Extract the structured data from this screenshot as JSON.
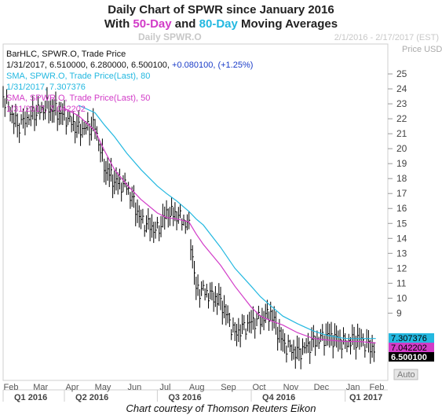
{
  "header": {
    "title_prefix": "Daily Chart of SPWR since January 2016",
    "subtitle_prefix": "With ",
    "ma50_label": "50-Day",
    "subtitle_mid": " and ",
    "ma80_label": "80-Day",
    "subtitle_suffix": " Moving Averages"
  },
  "caption": "Chart courtesy of Thomson Reuters Eikon",
  "colors": {
    "price": "#000000",
    "sma80": "#23b8e0",
    "sma50": "#d23cc8",
    "ma50_text": "#d23cc8",
    "ma80_text": "#23b8e0"
  },
  "chart_data": {
    "type": "line",
    "title": "Daily Chart of SPWR since January 2016",
    "instrument": "Daily SPWR.O",
    "date_range": "2/1/2016 - 2/17/2017 (EST)",
    "ylabel": "Price USD",
    "ylim": [
      4.5,
      27
    ],
    "yticks": [
      25,
      24,
      23,
      22,
      21,
      20,
      19,
      18,
      17,
      16,
      15,
      14,
      13,
      12,
      11,
      10,
      9
    ],
    "month_labels": [
      "Feb",
      "Mar",
      "Apr",
      "May",
      "Jun",
      "Jul",
      "Aug",
      "Sep",
      "Oct",
      "Nov",
      "Dec",
      "Jan",
      "Feb"
    ],
    "quarter_labels": [
      "Q1 2016",
      "Q2 2016",
      "Q3 2016",
      "Q4 2016",
      "Q1 2017"
    ],
    "legend": [
      {
        "name": "BarHLC, SPWR.O, Trade Price",
        "detail": "1/31/2017, 6.510000, 6.280000, 6.500100, +0.080100, (+1.25%)",
        "color": "#000000"
      },
      {
        "name": "SMA, SPWR.O, Trade Price(Last), 80",
        "detail": "1/31/2017, 7.307376",
        "color": "#23b8e0"
      },
      {
        "name": "SMA, SPWR.O, Trade Price(Last), 50",
        "detail": "1/31/2017, 7.042202",
        "color": "#d23cc8"
      }
    ],
    "last_value_tags": [
      {
        "value": "7.307376",
        "color": "#23b8e0"
      },
      {
        "value": "7.042202",
        "color": "#d23cc8"
      },
      {
        "value": "6.500100",
        "color": "#000000"
      }
    ],
    "auto_label": "Auto",
    "x": [
      "2016-02-01",
      "2016-02-15",
      "2016-03-01",
      "2016-03-15",
      "2016-04-01",
      "2016-04-15",
      "2016-05-01",
      "2016-05-10",
      "2016-05-20",
      "2016-06-01",
      "2016-06-15",
      "2016-07-01",
      "2016-07-10",
      "2016-07-20",
      "2016-08-01",
      "2016-08-08",
      "2016-08-15",
      "2016-09-01",
      "2016-09-15",
      "2016-10-01",
      "2016-10-10",
      "2016-10-20",
      "2016-11-01",
      "2016-11-15",
      "2016-12-01",
      "2016-12-15",
      "2017-01-01",
      "2017-01-15",
      "2017-01-31"
    ],
    "series": [
      {
        "name": "BarHLC, SPWR.O, Trade Price",
        "values": [
          23.5,
          21.5,
          22.3,
          22.8,
          22.2,
          21.3,
          21.5,
          18.8,
          17.8,
          17.5,
          15.2,
          14.5,
          15.7,
          15.6,
          14.8,
          10.6,
          10.5,
          9.8,
          7.6,
          8.4,
          8.6,
          9.0,
          7.0,
          6.3,
          7.1,
          7.5,
          7.0,
          7.3,
          6.5
        ]
      },
      {
        "name": "SMA, SPWR.O, Trade Price(Last), 80",
        "values": [
          null,
          null,
          null,
          null,
          null,
          22.9,
          22.4,
          21.6,
          20.8,
          19.7,
          18.6,
          17.5,
          17.0,
          16.5,
          15.8,
          15.3,
          14.9,
          13.4,
          12.0,
          10.8,
          10.1,
          9.5,
          8.8,
          8.3,
          7.8,
          7.5,
          7.3,
          7.3,
          7.3
        ]
      },
      {
        "name": "SMA, SPWR.O, Trade Price(Last), 50",
        "values": [
          null,
          null,
          null,
          null,
          22.7,
          22.2,
          21.2,
          19.9,
          18.6,
          17.6,
          16.6,
          15.7,
          15.4,
          15.3,
          15.1,
          14.3,
          13.6,
          12.2,
          10.8,
          9.4,
          8.8,
          8.5,
          8.2,
          7.7,
          7.3,
          7.2,
          7.1,
          7.1,
          7.0
        ]
      }
    ]
  }
}
